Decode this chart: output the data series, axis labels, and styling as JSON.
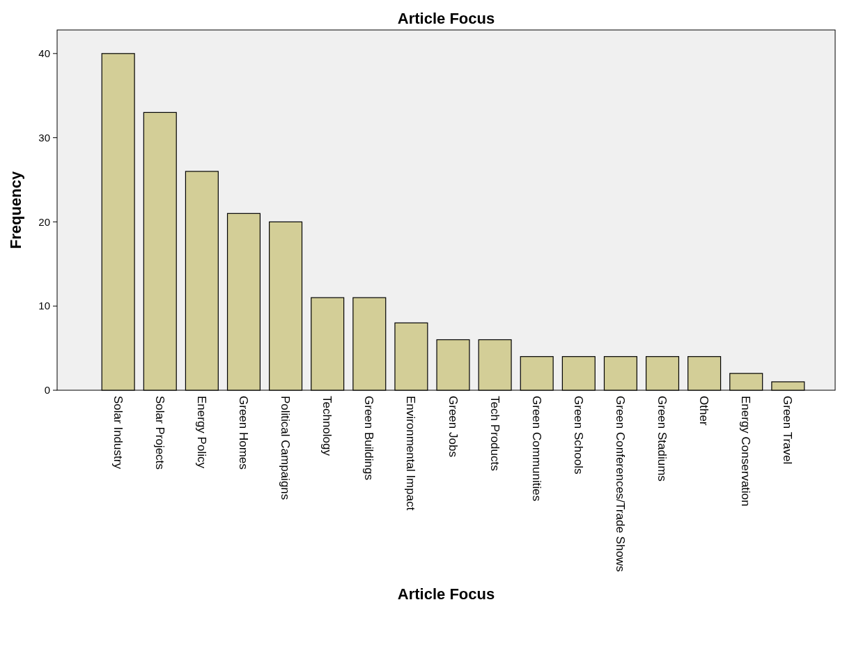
{
  "chart_data": {
    "type": "bar",
    "title": "Article Focus",
    "xlabel": "Article Focus",
    "ylabel": "Frequency",
    "categories": [
      "Solar Industry",
      "Solar Projects",
      "Energy Policy",
      "Green Homes",
      "Political Campaigns",
      "Technology",
      "Green Buildings",
      "Environmental Impact",
      "Green Jobs",
      "Tech Products",
      "Green Communities",
      "Green Schools",
      "Green Conferences/Trade Shows",
      "Green Stadiums",
      "Other",
      "Energy Conservation",
      "Green Travel"
    ],
    "values": [
      40,
      33,
      26,
      21,
      20,
      11,
      11,
      8,
      6,
      6,
      4,
      4,
      4,
      4,
      4,
      2,
      1
    ],
    "color": "#d3ce97",
    "ylim": [
      0,
      42.8
    ],
    "yticks": [
      0,
      10,
      20,
      30,
      40
    ],
    "grid": false
  }
}
